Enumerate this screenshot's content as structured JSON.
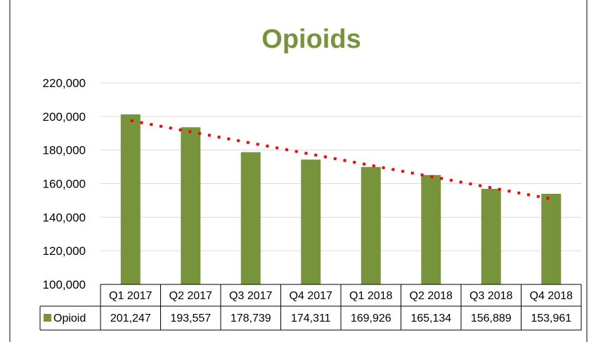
{
  "colors": {
    "bar": "#77933c",
    "trendline": "#ff0000",
    "gridline": "#d9d9d9",
    "border": "#000000"
  },
  "chart_data": {
    "type": "bar",
    "title": "Opioids",
    "categories": [
      "Q1 2017",
      "Q2 2017",
      "Q3 2017",
      "Q4 2017",
      "Q1 2018",
      "Q2 2018",
      "Q3 2018",
      "Q4 2018"
    ],
    "series": [
      {
        "name": "Opioid",
        "values": [
          201247,
          193557,
          178739,
          174311,
          169926,
          165134,
          156889,
          153961
        ],
        "value_labels": [
          "201,247",
          "193,557",
          "178,739",
          "174,311",
          "169,926",
          "165,134",
          "156,889",
          "153,961"
        ]
      }
    ],
    "ylim": [
      100000,
      220000
    ],
    "yticks": [
      100000,
      120000,
      140000,
      160000,
      180000,
      200000,
      220000
    ],
    "ytick_labels": [
      "100,000",
      "120,000",
      "140,000",
      "160,000",
      "180,000",
      "200,000",
      "220,000"
    ],
    "grid": true,
    "trendline": {
      "type": "linear",
      "style": "dotted",
      "color": "red"
    },
    "data_table": true,
    "xlabel": "",
    "ylabel": ""
  }
}
